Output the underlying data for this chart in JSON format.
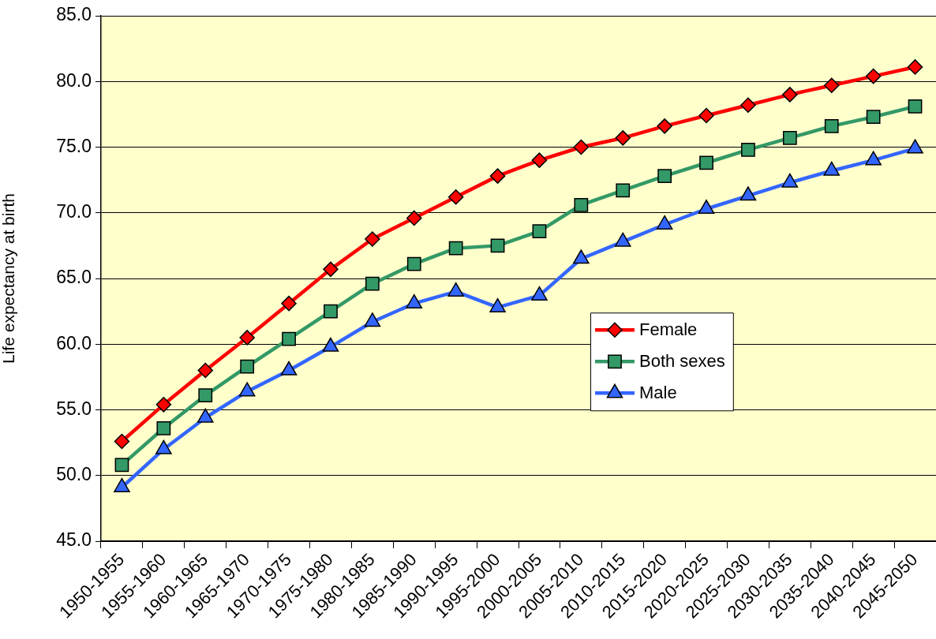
{
  "chart_data": {
    "type": "line",
    "ylabel": "Life expectancy at birth",
    "categories": [
      "1950-1955",
      "1955-1960",
      "1960-1965",
      "1965-1970",
      "1970-1975",
      "1975-1980",
      "1980-1985",
      "1985-1990",
      "1990-1995",
      "1995-2000",
      "2000-2005",
      "2005-2010",
      "2010-2015",
      "2015-2020",
      "2020-2025",
      "2025-2030",
      "2030-2035",
      "2035-2040",
      "2040-2045",
      "2045-2050"
    ],
    "series": [
      {
        "name": "Female",
        "color": "#ff0000",
        "marker": "diamond",
        "values": [
          52.6,
          55.4,
          58.0,
          60.5,
          63.1,
          65.7,
          68.0,
          69.6,
          71.2,
          72.8,
          74.0,
          75.0,
          75.7,
          76.6,
          77.4,
          78.2,
          79.0,
          79.7,
          80.4,
          81.1
        ]
      },
      {
        "name": "Both sexes",
        "color": "#339966",
        "marker": "square",
        "values": [
          50.8,
          53.6,
          56.1,
          58.3,
          60.4,
          62.5,
          64.6,
          66.1,
          67.3,
          67.5,
          68.6,
          70.6,
          71.7,
          72.8,
          73.8,
          74.8,
          75.7,
          76.6,
          77.3,
          78.1
        ]
      },
      {
        "name": "Male",
        "color": "#3366ff",
        "marker": "triangle",
        "values": [
          49.1,
          52.0,
          54.4,
          56.4,
          58.0,
          59.8,
          61.7,
          63.1,
          64.0,
          62.8,
          63.7,
          66.5,
          67.8,
          69.1,
          70.3,
          71.3,
          72.3,
          73.2,
          74.0,
          74.9
        ]
      }
    ],
    "ylim": [
      45,
      85
    ],
    "yticks": [
      {
        "value": 45,
        "label": "45.0"
      },
      {
        "value": 50,
        "label": "50.0"
      },
      {
        "value": 55,
        "label": "55.0"
      },
      {
        "value": 60,
        "label": "60.0"
      },
      {
        "value": 65,
        "label": "65.0"
      },
      {
        "value": 70,
        "label": "70.0"
      },
      {
        "value": 75,
        "label": "75.0"
      },
      {
        "value": 80,
        "label": "80.0"
      },
      {
        "value": 85,
        "label": "85.0"
      }
    ],
    "grid": "y",
    "legend": "right",
    "line_style": "solid"
  }
}
